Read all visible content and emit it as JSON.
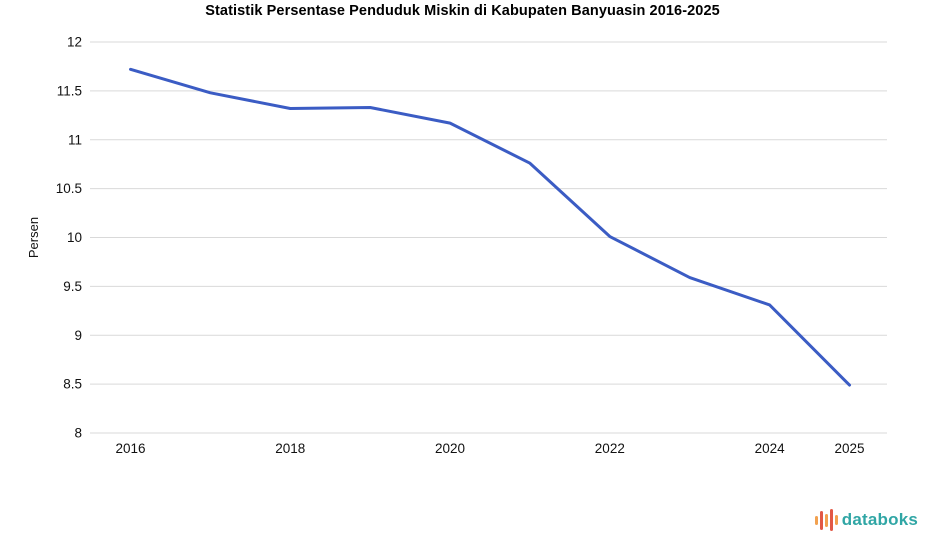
{
  "title": "Statistik Persentase Penduduk Miskin di Kabupaten Banyuasin 2016-2025",
  "chart_data": {
    "type": "line",
    "x": [
      2016,
      2017,
      2018,
      2019,
      2020,
      2021,
      2022,
      2023,
      2024,
      2025
    ],
    "values": [
      11.72,
      11.48,
      11.32,
      11.33,
      11.17,
      10.76,
      10.01,
      9.59,
      9.31,
      8.49
    ],
    "title": "Statistik Persentase Penduduk Miskin di Kabupaten Banyuasin 2016-2025",
    "xlabel": "",
    "ylabel": "Persen",
    "ylim": [
      8,
      12
    ],
    "yticks": [
      12,
      11.5,
      11,
      10.5,
      10,
      9.5,
      9,
      8.5,
      8
    ],
    "ytick_labels": [
      "12",
      "11.5",
      "11",
      "10.5",
      "10",
      "9.5",
      "9",
      "8.5",
      "8"
    ],
    "xticks": [
      2016,
      2018,
      2020,
      2022,
      2024,
      2025
    ],
    "xtick_labels": [
      "2016",
      "2018",
      "2020",
      "2022",
      "2024",
      "2025"
    ],
    "grid": "horizontal-only",
    "legend": false,
    "line_color": "#3b5cc4",
    "grid_color": "#d9d9d9",
    "tick_label_color": "#111111"
  },
  "branding": {
    "logo_text": "databoks",
    "logo_text_color": "#30a6a5",
    "bar_colors": [
      "#f2a14f",
      "#e25845",
      "#f2a14f",
      "#e25845",
      "#f2a14f"
    ],
    "bar_heights": [
      9,
      19,
      13,
      22,
      10
    ],
    "icon_name": "pulse-bars-icon"
  }
}
